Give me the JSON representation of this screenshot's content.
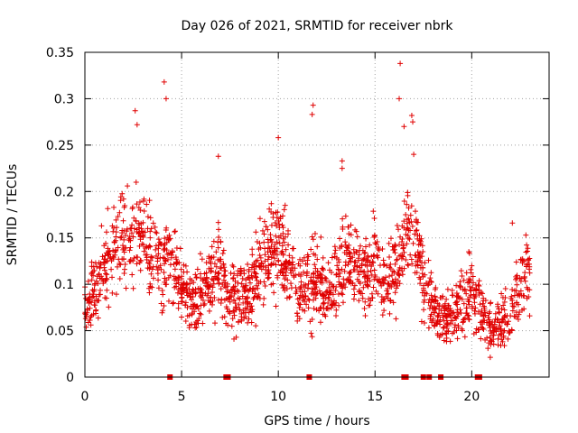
{
  "chart_data": {
    "type": "scatter",
    "title": "Day 026 of 2021, SRMTID for receiver nbrk",
    "xlabel": "GPS time / hours",
    "ylabel": "SRMTID / TECUs",
    "xlim": [
      0,
      24
    ],
    "ylim": [
      0,
      0.35
    ],
    "xticks": [
      0,
      5,
      10,
      15,
      20
    ],
    "yticks": [
      0,
      0.05,
      0.1,
      0.15,
      0.2,
      0.25,
      0.3,
      0.35
    ],
    "xtick_labels": [
      "0",
      "5",
      "10",
      "15",
      "20"
    ],
    "ytick_labels": [
      "0",
      "0.05",
      "0.1",
      "0.15",
      "0.2",
      "0.25",
      "0.3",
      "0.35"
    ],
    "grid": true,
    "marker": "+",
    "marker_color": "#e00000",
    "series": [
      {
        "name": "SRMTID",
        "envelope_hours": [
          0.0,
          0.5,
          1.0,
          1.5,
          2.0,
          2.5,
          3.0,
          3.5,
          4.0,
          4.5,
          5.0,
          5.5,
          6.0,
          6.5,
          7.0,
          7.5,
          8.0,
          8.5,
          9.0,
          9.5,
          10.0,
          10.5,
          11.0,
          11.5,
          12.0,
          12.5,
          13.0,
          13.5,
          14.0,
          14.5,
          15.0,
          15.5,
          16.0,
          16.5,
          17.0,
          17.5,
          18.0,
          18.5,
          19.0,
          19.5,
          20.0,
          20.5,
          21.0,
          21.5,
          22.0,
          22.5,
          23.0
        ],
        "envelope_mean": [
          0.075,
          0.09,
          0.12,
          0.14,
          0.15,
          0.14,
          0.16,
          0.13,
          0.11,
          0.13,
          0.09,
          0.08,
          0.09,
          0.1,
          0.12,
          0.08,
          0.09,
          0.09,
          0.12,
          0.13,
          0.14,
          0.12,
          0.09,
          0.1,
          0.11,
          0.08,
          0.11,
          0.13,
          0.12,
          0.11,
          0.12,
          0.1,
          0.11,
          0.15,
          0.16,
          0.11,
          0.07,
          0.06,
          0.07,
          0.08,
          0.09,
          0.07,
          0.05,
          0.06,
          0.06,
          0.1,
          0.11
        ],
        "envelope_spread": [
          0.03,
          0.035,
          0.045,
          0.05,
          0.05,
          0.05,
          0.05,
          0.045,
          0.04,
          0.05,
          0.035,
          0.035,
          0.035,
          0.04,
          0.045,
          0.035,
          0.035,
          0.035,
          0.045,
          0.05,
          0.05,
          0.045,
          0.035,
          0.04,
          0.045,
          0.035,
          0.045,
          0.05,
          0.045,
          0.04,
          0.045,
          0.04,
          0.045,
          0.05,
          0.05,
          0.04,
          0.03,
          0.025,
          0.03,
          0.035,
          0.035,
          0.03,
          0.025,
          0.03,
          0.03,
          0.04,
          0.04
        ],
        "highlights": [
          [
            2.6,
            0.287
          ],
          [
            2.7,
            0.272
          ],
          [
            4.1,
            0.318
          ],
          [
            4.2,
            0.3
          ],
          [
            6.9,
            0.238
          ],
          [
            10.0,
            0.258
          ],
          [
            11.8,
            0.293
          ],
          [
            11.75,
            0.283
          ],
          [
            16.3,
            0.338
          ],
          [
            16.25,
            0.3
          ],
          [
            16.5,
            0.27
          ],
          [
            16.9,
            0.282
          ],
          [
            16.95,
            0.275
          ],
          [
            17.0,
            0.24
          ],
          [
            13.3,
            0.233
          ],
          [
            13.3,
            0.225
          ],
          [
            20.0,
            0.12
          ],
          [
            22.1,
            0.166
          ],
          [
            22.8,
            0.153
          ],
          [
            2.2,
            0.206
          ]
        ],
        "count": 1900
      }
    ],
    "zero_markers_hours": [
      4.4,
      7.3,
      7.4,
      11.6,
      16.5,
      16.6,
      17.5,
      17.8,
      18.4,
      20.3,
      20.4
    ]
  }
}
